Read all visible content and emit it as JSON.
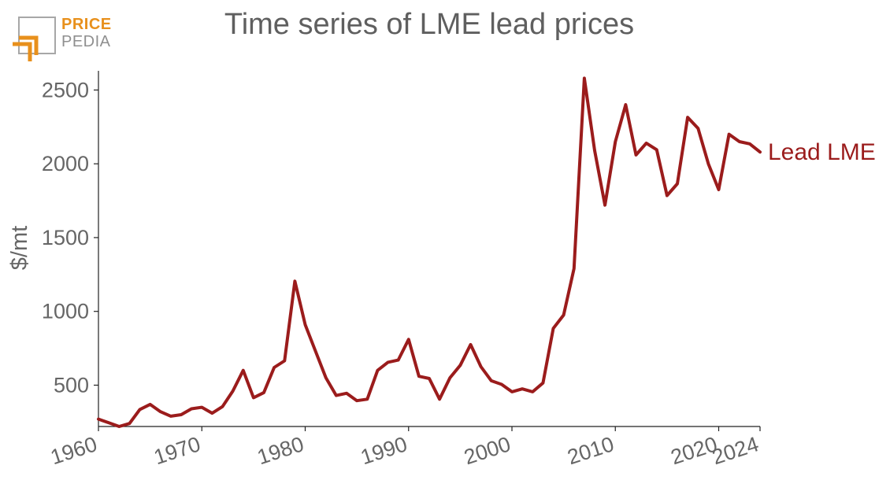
{
  "logo": {
    "brand_line1": "PRICE",
    "brand_line2": "PEDIA"
  },
  "chart_data": {
    "type": "line",
    "title": "Time series of LME lead prices",
    "xlabel": "",
    "ylabel": "$/mt",
    "x_ticks": [
      1960,
      1970,
      1980,
      1990,
      2000,
      2010,
      2020,
      2024
    ],
    "y_ticks": [
      500,
      1000,
      1500,
      2000,
      2500
    ],
    "xlim": [
      1960,
      2024
    ],
    "ylim": [
      220,
      2630
    ],
    "grid": false,
    "legend": "none",
    "series": [
      {
        "name": "Lead LME",
        "color": "#9b1c1c",
        "x": [
          1960,
          1961,
          1962,
          1963,
          1964,
          1965,
          1966,
          1967,
          1968,
          1969,
          1970,
          1971,
          1972,
          1973,
          1974,
          1975,
          1976,
          1977,
          1978,
          1979,
          1980,
          1981,
          1982,
          1983,
          1984,
          1985,
          1986,
          1987,
          1988,
          1989,
          1990,
          1991,
          1992,
          1993,
          1994,
          1995,
          1996,
          1997,
          1998,
          1999,
          2000,
          2001,
          2002,
          2003,
          2004,
          2005,
          2006,
          2007,
          2008,
          2009,
          2010,
          2011,
          2012,
          2013,
          2014,
          2015,
          2016,
          2017,
          2018,
          2019,
          2020,
          2021,
          2022,
          2023,
          2024
        ],
        "values": [
          270,
          245,
          220,
          240,
          335,
          370,
          320,
          290,
          300,
          340,
          350,
          310,
          355,
          460,
          600,
          415,
          450,
          620,
          665,
          1205,
          910,
          730,
          550,
          430,
          445,
          395,
          405,
          600,
          655,
          670,
          810,
          560,
          545,
          405,
          550,
          635,
          775,
          625,
          530,
          505,
          455,
          475,
          455,
          515,
          885,
          975,
          1290,
          2580,
          2090,
          1720,
          2150,
          2400,
          2060,
          2140,
          2095,
          1785,
          1865,
          2315,
          2240,
          2000,
          1825,
          2200,
          2150,
          2135,
          2080
        ]
      }
    ]
  }
}
